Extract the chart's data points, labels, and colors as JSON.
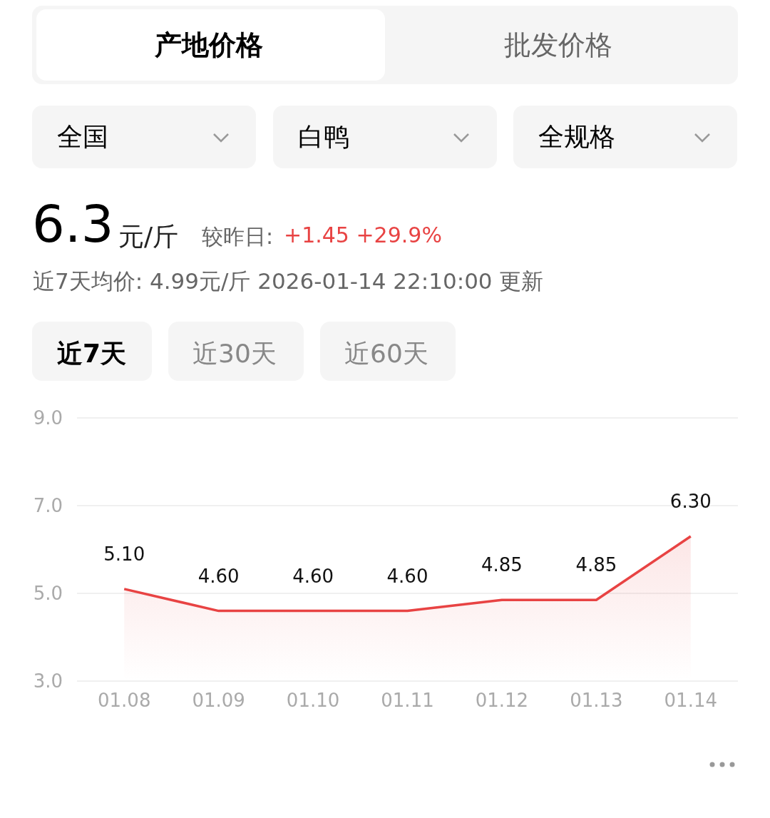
{
  "chart_data": {
    "type": "area",
    "title": "6.3",
    "subtitle": "近7天均价: 4.99元/斤   2026-01-14 22:10:00 更新",
    "annotations": [
      "产地价格",
      "批发价格",
      "全国",
      "白鸭",
      "全规格",
      "元/斤",
      "较昨日:",
      "+1.45 +29.9%",
      "近7天",
      "近30天",
      "近60天"
    ],
    "categories": [
      "01.08",
      "01.09",
      "01.10",
      "01.11",
      "01.12",
      "01.13",
      "01.14"
    ],
    "series": [
      {
        "color": "#e84343",
        "values": [
          5.1,
          4.6,
          4.6,
          4.6,
          4.85,
          4.85,
          6.3
        ]
      }
    ],
    "value_labels": [
      "5.10",
      "4.60",
      "4.60",
      "4.60",
      "4.85",
      "4.85",
      "6.30"
    ],
    "ylim": [
      3.0,
      9.0
    ],
    "yticks": [
      {
        "value": 3,
        "label": "3.0"
      },
      {
        "value": 5,
        "label": "5.0"
      },
      {
        "value": 7,
        "label": "7.0"
      },
      {
        "value": 9,
        "label": "9.0"
      }
    ],
    "grid": "y",
    "marker": "none",
    "line_style": "solid"
  }
}
